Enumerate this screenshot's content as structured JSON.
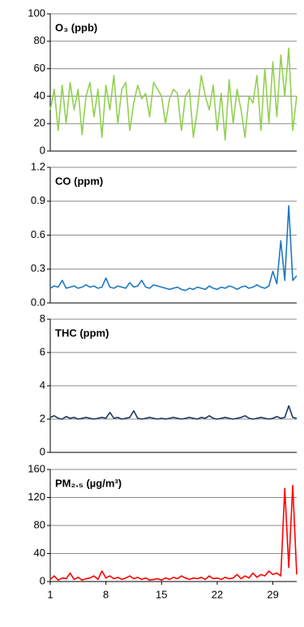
{
  "chart_data": [
    {
      "type": "line",
      "title": "O₃ (ppb)",
      "x": [
        1,
        1.5,
        2,
        2.5,
        3,
        3.5,
        4,
        4.5,
        5,
        5.5,
        6,
        6.5,
        7,
        7.5,
        8,
        8.5,
        9,
        9.5,
        10,
        10.5,
        11,
        11.5,
        12,
        12.5,
        13,
        13.5,
        14,
        14.5,
        15,
        15.5,
        16,
        16.5,
        17,
        17.5,
        18,
        18.5,
        19,
        19.5,
        20,
        20.5,
        21,
        21.5,
        22,
        22.5,
        23,
        23.5,
        24,
        24.5,
        25,
        25.5,
        26,
        26.5,
        27,
        27.5,
        28,
        28.5,
        29,
        29.5,
        30,
        30.5,
        31,
        31.5,
        32
      ],
      "series": [
        {
          "color": "#92d050",
          "values": [
            30,
            45,
            15,
            48,
            20,
            50,
            30,
            45,
            12,
            40,
            50,
            25,
            45,
            10,
            48,
            30,
            55,
            20,
            45,
            50,
            15,
            35,
            48,
            38,
            42,
            25,
            50,
            45,
            40,
            20,
            38,
            45,
            42,
            15,
            40,
            45,
            10,
            30,
            55,
            40,
            30,
            48,
            15,
            42,
            8,
            52,
            20,
            45,
            30,
            10,
            40,
            35,
            55,
            15,
            60,
            20,
            65,
            25,
            70,
            40,
            75,
            15,
            40
          ]
        }
      ],
      "xlim": [
        1,
        32
      ],
      "ylim": [
        0,
        100
      ],
      "yticks": [
        0,
        20,
        40,
        60,
        80,
        100
      ],
      "grid": true
    },
    {
      "type": "line",
      "title": "CO (ppm)",
      "x": [
        1,
        1.5,
        2,
        2.5,
        3,
        3.5,
        4,
        4.5,
        5,
        5.5,
        6,
        6.5,
        7,
        7.5,
        8,
        8.5,
        9,
        9.5,
        10,
        10.5,
        11,
        11.5,
        12,
        12.5,
        13,
        13.5,
        14,
        14.5,
        15,
        15.5,
        16,
        16.5,
        17,
        17.5,
        18,
        18.5,
        19,
        19.5,
        20,
        20.5,
        21,
        21.5,
        22,
        22.5,
        23,
        23.5,
        24,
        24.5,
        25,
        25.5,
        26,
        26.5,
        27,
        27.5,
        28,
        28.5,
        29,
        29.5,
        30,
        30.5,
        31,
        31.5,
        32
      ],
      "series": [
        {
          "color": "#1f78c1",
          "values": [
            0.13,
            0.15,
            0.14,
            0.2,
            0.13,
            0.14,
            0.15,
            0.13,
            0.14,
            0.16,
            0.14,
            0.15,
            0.13,
            0.14,
            0.22,
            0.14,
            0.13,
            0.15,
            0.14,
            0.13,
            0.18,
            0.14,
            0.15,
            0.2,
            0.14,
            0.13,
            0.16,
            0.15,
            0.14,
            0.13,
            0.12,
            0.13,
            0.14,
            0.12,
            0.11,
            0.13,
            0.12,
            0.14,
            0.13,
            0.12,
            0.15,
            0.13,
            0.12,
            0.14,
            0.13,
            0.15,
            0.14,
            0.12,
            0.14,
            0.15,
            0.13,
            0.14,
            0.16,
            0.14,
            0.13,
            0.15,
            0.28,
            0.17,
            0.55,
            0.2,
            0.86,
            0.2,
            0.24
          ]
        }
      ],
      "xlim": [
        1,
        32
      ],
      "ylim": [
        0,
        1.2
      ],
      "yticks": [
        {
          "value": 0,
          "label": "0.0"
        },
        0.3,
        0.6,
        0.9,
        1.2
      ],
      "grid": true
    },
    {
      "type": "line",
      "title": "THC (ppm)",
      "x": [
        1,
        1.5,
        2,
        2.5,
        3,
        3.5,
        4,
        4.5,
        5,
        5.5,
        6,
        6.5,
        7,
        7.5,
        8,
        8.5,
        9,
        9.5,
        10,
        10.5,
        11,
        11.5,
        12,
        12.5,
        13,
        13.5,
        14,
        14.5,
        15,
        15.5,
        16,
        16.5,
        17,
        17.5,
        18,
        18.5,
        19,
        19.5,
        20,
        20.5,
        21,
        21.5,
        22,
        22.5,
        23,
        23.5,
        24,
        24.5,
        25,
        25.5,
        26,
        26.5,
        27,
        27.5,
        28,
        28.5,
        29,
        29.5,
        30,
        30.5,
        31,
        31.5,
        32
      ],
      "series": [
        {
          "color": "#1f3a5f",
          "values": [
            2.1,
            2.2,
            2.05,
            2.0,
            2.15,
            2.05,
            2.1,
            2.0,
            2.05,
            2.1,
            2.05,
            2.0,
            2.05,
            2.1,
            2.05,
            2.4,
            2.05,
            2.1,
            2.0,
            2.05,
            2.1,
            2.5,
            2.05,
            2.0,
            2.05,
            2.1,
            2.05,
            2.0,
            2.05,
            2.0,
            2.05,
            2.1,
            2.05,
            2.0,
            2.05,
            2.1,
            2.05,
            2.0,
            2.1,
            2.05,
            2.2,
            2.05,
            2.0,
            2.05,
            2.1,
            2.05,
            2.0,
            2.05,
            2.1,
            2.2,
            2.05,
            2.0,
            2.05,
            2.1,
            2.05,
            2.0,
            2.05,
            2.15,
            2.05,
            2.1,
            2.8,
            2.1,
            2.05
          ]
        }
      ],
      "xlim": [
        1,
        32
      ],
      "ylim": [
        0,
        8
      ],
      "yticks": [
        0,
        2,
        4,
        6,
        8
      ],
      "grid": true
    },
    {
      "type": "line",
      "title": "PM₂.₅ (µg/m³)",
      "x": [
        1,
        1.5,
        2,
        2.5,
        3,
        3.5,
        4,
        4.5,
        5,
        5.5,
        6,
        6.5,
        7,
        7.5,
        8,
        8.5,
        9,
        9.5,
        10,
        10.5,
        11,
        11.5,
        12,
        12.5,
        13,
        13.5,
        14,
        14.5,
        15,
        15.5,
        16,
        16.5,
        17,
        17.5,
        18,
        18.5,
        19,
        19.5,
        20,
        20.5,
        21,
        21.5,
        22,
        22.5,
        23,
        23.5,
        24,
        24.5,
        25,
        25.5,
        26,
        26.5,
        27,
        27.5,
        28,
        28.5,
        29,
        29.5,
        30,
        30.5,
        31,
        31.5,
        32
      ],
      "series": [
        {
          "color": "#ff0000",
          "values": [
            3,
            8,
            2,
            5,
            4,
            12,
            3,
            6,
            2,
            4,
            5,
            8,
            3,
            15,
            5,
            8,
            4,
            6,
            3,
            5,
            8,
            4,
            6,
            3,
            5,
            2,
            3,
            4,
            2,
            5,
            3,
            6,
            4,
            8,
            5,
            3,
            5,
            4,
            6,
            3,
            8,
            4,
            5,
            3,
            6,
            4,
            5,
            10,
            4,
            8,
            5,
            12,
            6,
            10,
            8,
            15,
            10,
            12,
            8,
            133,
            20,
            137,
            10
          ]
        }
      ],
      "xlim": [
        1,
        32
      ],
      "ylim": [
        0,
        160
      ],
      "yticks": [
        0,
        40,
        80,
        120,
        160
      ],
      "xticks": [
        1,
        8,
        15,
        22,
        29
      ],
      "grid": true
    }
  ]
}
